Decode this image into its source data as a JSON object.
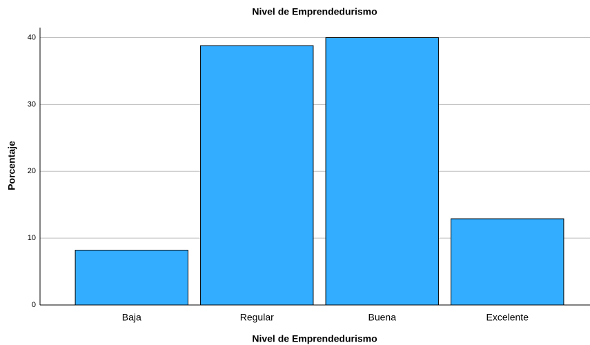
{
  "chart_data": {
    "type": "bar",
    "title": "Nivel de Emprendedurismo",
    "x_label": "Nivel de Emprendedurismo",
    "y_label": "Porcentaje",
    "categories": [
      "Baja",
      "Regular",
      "Buena",
      "Excelente"
    ],
    "values": [
      8.2,
      38.8,
      40.0,
      12.9
    ],
    "color": "#33adff",
    "ylim": [
      0,
      41.5
    ],
    "yticks": [
      0,
      10,
      20,
      30,
      40
    ],
    "grid": true
  }
}
